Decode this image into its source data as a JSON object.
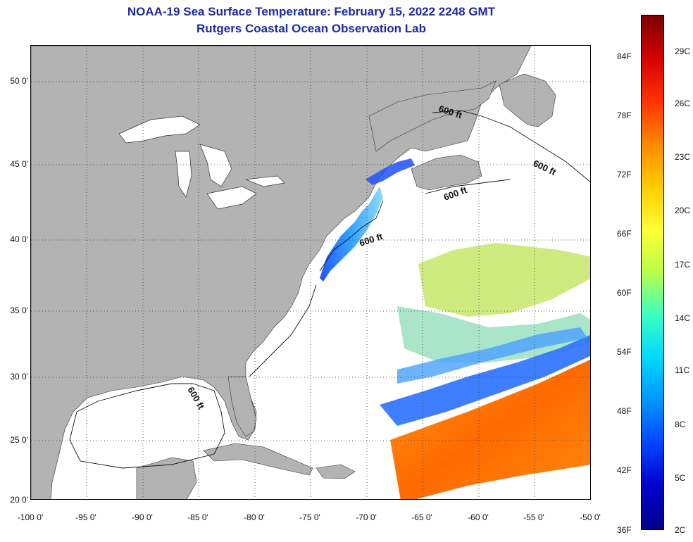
{
  "title": "NOAA-19 Sea Surface Temperature:  February 15, 2022 2248 GMT",
  "subtitle": "Rutgers Coastal Ocean Observation Lab",
  "map": {
    "lat_labels": [
      "50 0'",
      "45 0'",
      "40 0'",
      "35 0'",
      "30 0'",
      "25 0'",
      "20 0'"
    ],
    "lon_labels": [
      "-100 0'",
      "-95 0'",
      "-90 0'",
      "-85 0'",
      "-80 0'",
      "-75 0'",
      "-70 0'",
      "-65 0'",
      "-60 0'",
      "-55 0'",
      "-50 0'"
    ],
    "contour_label": "600 ft",
    "land_color": "#b3b3b3",
    "ocean_color": "#ffffff"
  },
  "colorbar": {
    "f_labels": [
      "84F",
      "78F",
      "72F",
      "66F",
      "60F",
      "54F",
      "48F",
      "42F",
      "36F"
    ],
    "c_labels": [
      "29C",
      "26C",
      "23C",
      "20C",
      "17C",
      "14C",
      "11C",
      "8C",
      "5C",
      "2C"
    ],
    "colors": [
      "#7a0000",
      "#d40000",
      "#ff3300",
      "#ff8800",
      "#ffcc00",
      "#ffff33",
      "#b8ff4a",
      "#3cffc0",
      "#00d8ff",
      "#0096ff",
      "#0044ff",
      "#0000cc",
      "#00008a"
    ]
  }
}
